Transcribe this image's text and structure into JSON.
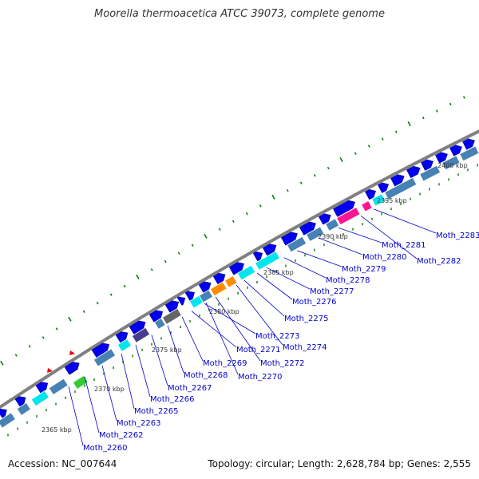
{
  "header": {
    "title": "Moorella thermoacetica ATCC 39073, complete genome"
  },
  "footer": {
    "accession": "Accession: NC_007644",
    "summary": "Topology: circular; Length: 2,628,784 bp; Genes: 2,555"
  },
  "scale_labels": [
    "2365 kbp",
    "2370 kbp",
    "2375 kbp",
    "2380 kbp",
    "2385 kbp",
    "2390 kbp",
    "2395 kbp",
    "2400 kbp"
  ],
  "gene_labels": [
    "Moth_2260",
    "Moth_2262",
    "Moth_2263",
    "Moth_2265",
    "Moth_2266",
    "Moth_2267",
    "Moth_2268",
    "Moth_2269",
    "Moth_2270",
    "Moth_2271",
    "Moth_2272",
    "Moth_2273",
    "Moth_2274",
    "Moth_2275",
    "Moth_2276",
    "Moth_2277",
    "Moth_2278",
    "Moth_2279",
    "Moth_2280",
    "Moth_2281",
    "Moth_2282",
    "Moth_2283"
  ],
  "colors": {
    "cds": "#0000ee",
    "cds_outline": "#000088",
    "backbone": "#808080",
    "ruler_major": "#0a7a0a",
    "ruler_minor": "#0a7a0a",
    "steelblue": "#4682b4",
    "cyan": "#00e5ee",
    "orange": "#ff8c00",
    "magenta": "#ff1493",
    "slate": "#483d8b",
    "gray": "#666666",
    "green": "#33cc33",
    "red": "#ee0000",
    "link": "#0000cc"
  }
}
